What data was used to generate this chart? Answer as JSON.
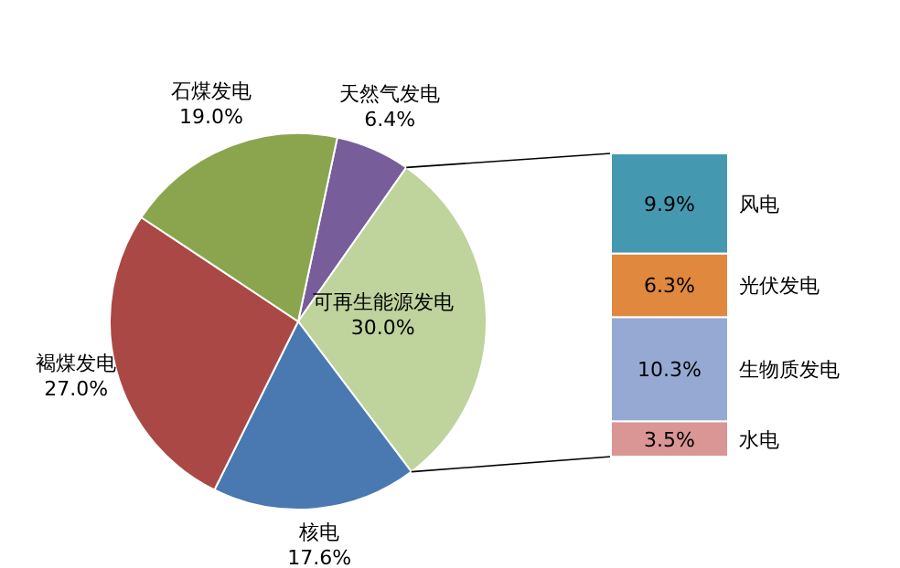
{
  "chart_data": [
    {
      "type": "pie",
      "categories": [
        "天然气发电",
        "可再生能源发电",
        "核电",
        "褐煤发电",
        "石煤发电"
      ],
      "values": [
        6.4,
        30.0,
        17.6,
        27.0,
        19.0
      ],
      "colors": [
        "#775e9a",
        "#bfd39c",
        "#4a78b0",
        "#aa4845",
        "#8aa54e"
      ],
      "value_labels": [
        "6.4%",
        "30.0%",
        "17.6%",
        "27.0%",
        "19.0%"
      ]
    },
    {
      "type": "bar",
      "stacked": true,
      "categories": [
        null
      ],
      "series": [
        {
          "name": "水电",
          "color": "#d99694",
          "values": [
            3.5
          ],
          "value_labels": [
            "3.5%"
          ]
        },
        {
          "name": "生物质发电",
          "color": "#95a9d2",
          "values": [
            10.3
          ],
          "value_labels": [
            "10.3%"
          ]
        },
        {
          "name": "光伏发电",
          "color": "#e0883e",
          "values": [
            6.3
          ],
          "value_labels": [
            "6.3%"
          ]
        },
        {
          "name": "风电",
          "color": "#4499b0",
          "values": [
            9.9
          ],
          "value_labels": [
            "9.9%"
          ]
        }
      ]
    }
  ]
}
